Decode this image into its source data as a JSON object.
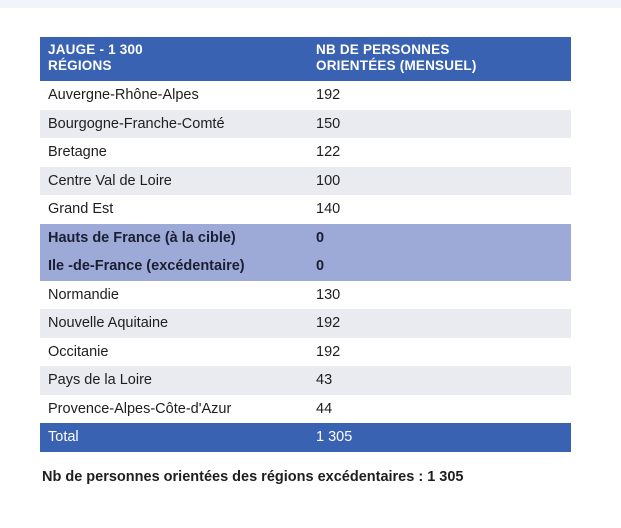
{
  "table": {
    "header": {
      "col1_line1": "JAUGE - 1 300",
      "col1_line2": "RÉGIONS",
      "col2_line1": "NB DE PERSONNES",
      "col2_line2": "ORIENTÉES (MENSUEL)"
    },
    "rows": [
      {
        "region": "Auvergne-Rhône-Alpes",
        "value": "192"
      },
      {
        "region": "Bourgogne-Franche-Comté",
        "value": "150"
      },
      {
        "region": "Bretagne",
        "value": "122"
      },
      {
        "region": "Centre Val de Loire",
        "value": "100"
      },
      {
        "region": "Grand Est",
        "value": "140"
      },
      {
        "region": "Hauts de France (à la cible)",
        "value": "0"
      },
      {
        "region": "Ile -de-France (excédentaire)",
        "value": "0"
      },
      {
        "region": "Normandie",
        "value": "130"
      },
      {
        "region": "Nouvelle Aquitaine",
        "value": "192"
      },
      {
        "region": "Occitanie",
        "value": "192"
      },
      {
        "region": "Pays de la Loire",
        "value": "43"
      },
      {
        "region": "Provence-Alpes-Côte-d'Azur",
        "value": "44"
      }
    ],
    "total": {
      "label": "Total",
      "value": "1 305"
    }
  },
  "footnote": "Nb de personnes orientées des régions excédentaires : 1 305",
  "colors": {
    "header_bg": "#3a62b3",
    "stripe_bg": "#e9ebf1",
    "highlight_bg": "#9daad7"
  }
}
